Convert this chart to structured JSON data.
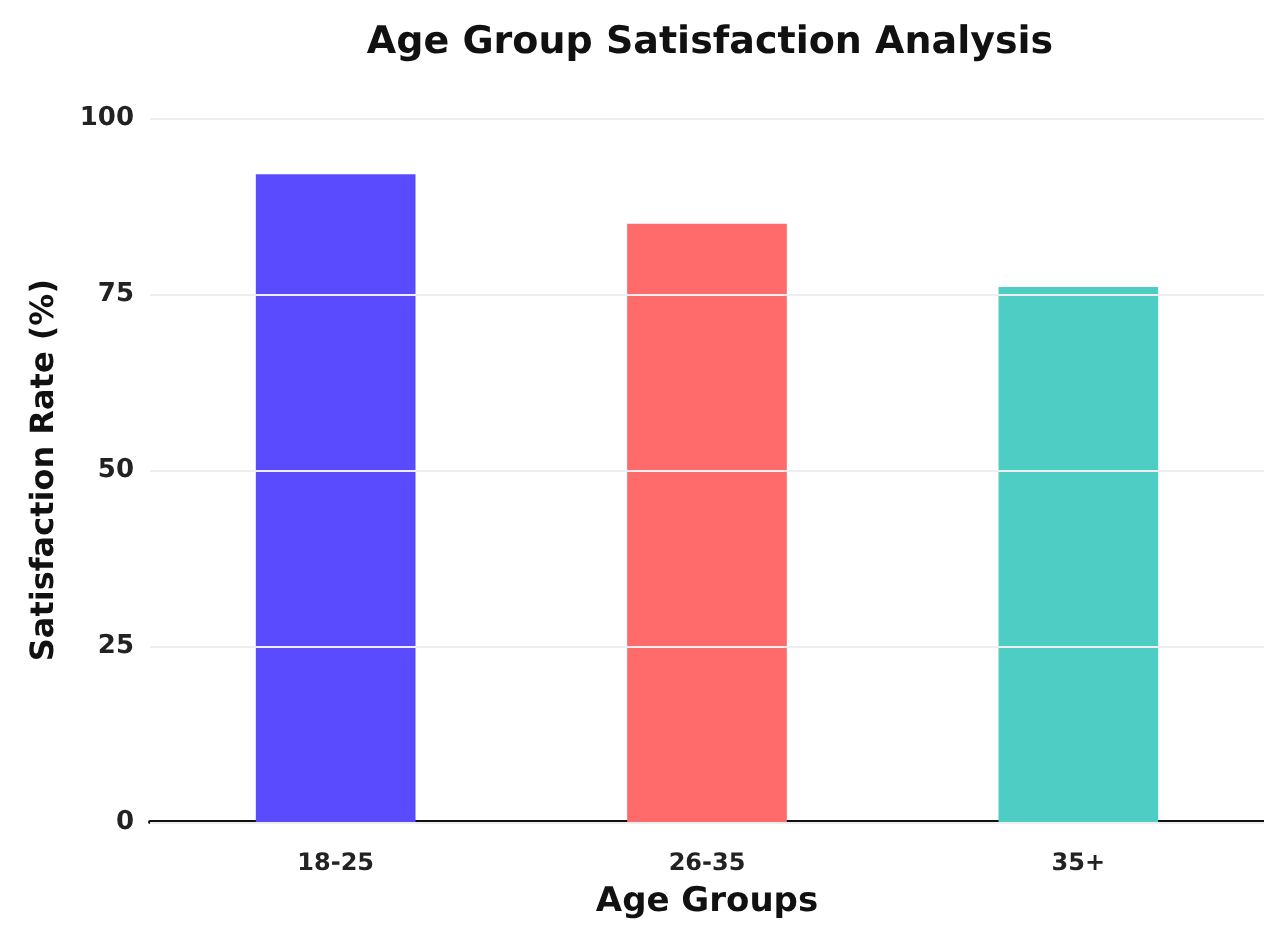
{
  "chart_data": {
    "type": "bar",
    "title": "Age Group Satisfaction Analysis",
    "xlabel": "Age Groups",
    "ylabel": "Satisfaction Rate (%)",
    "categories": [
      "18-25",
      "26-35",
      "35+"
    ],
    "values": [
      92,
      85,
      76
    ],
    "colors": [
      "#5b4bff",
      "#ff6b6b",
      "#4ecdc4"
    ],
    "ylim": [
      0,
      100
    ],
    "yticks": [
      0,
      25,
      50,
      75,
      100
    ],
    "grid": "y"
  }
}
